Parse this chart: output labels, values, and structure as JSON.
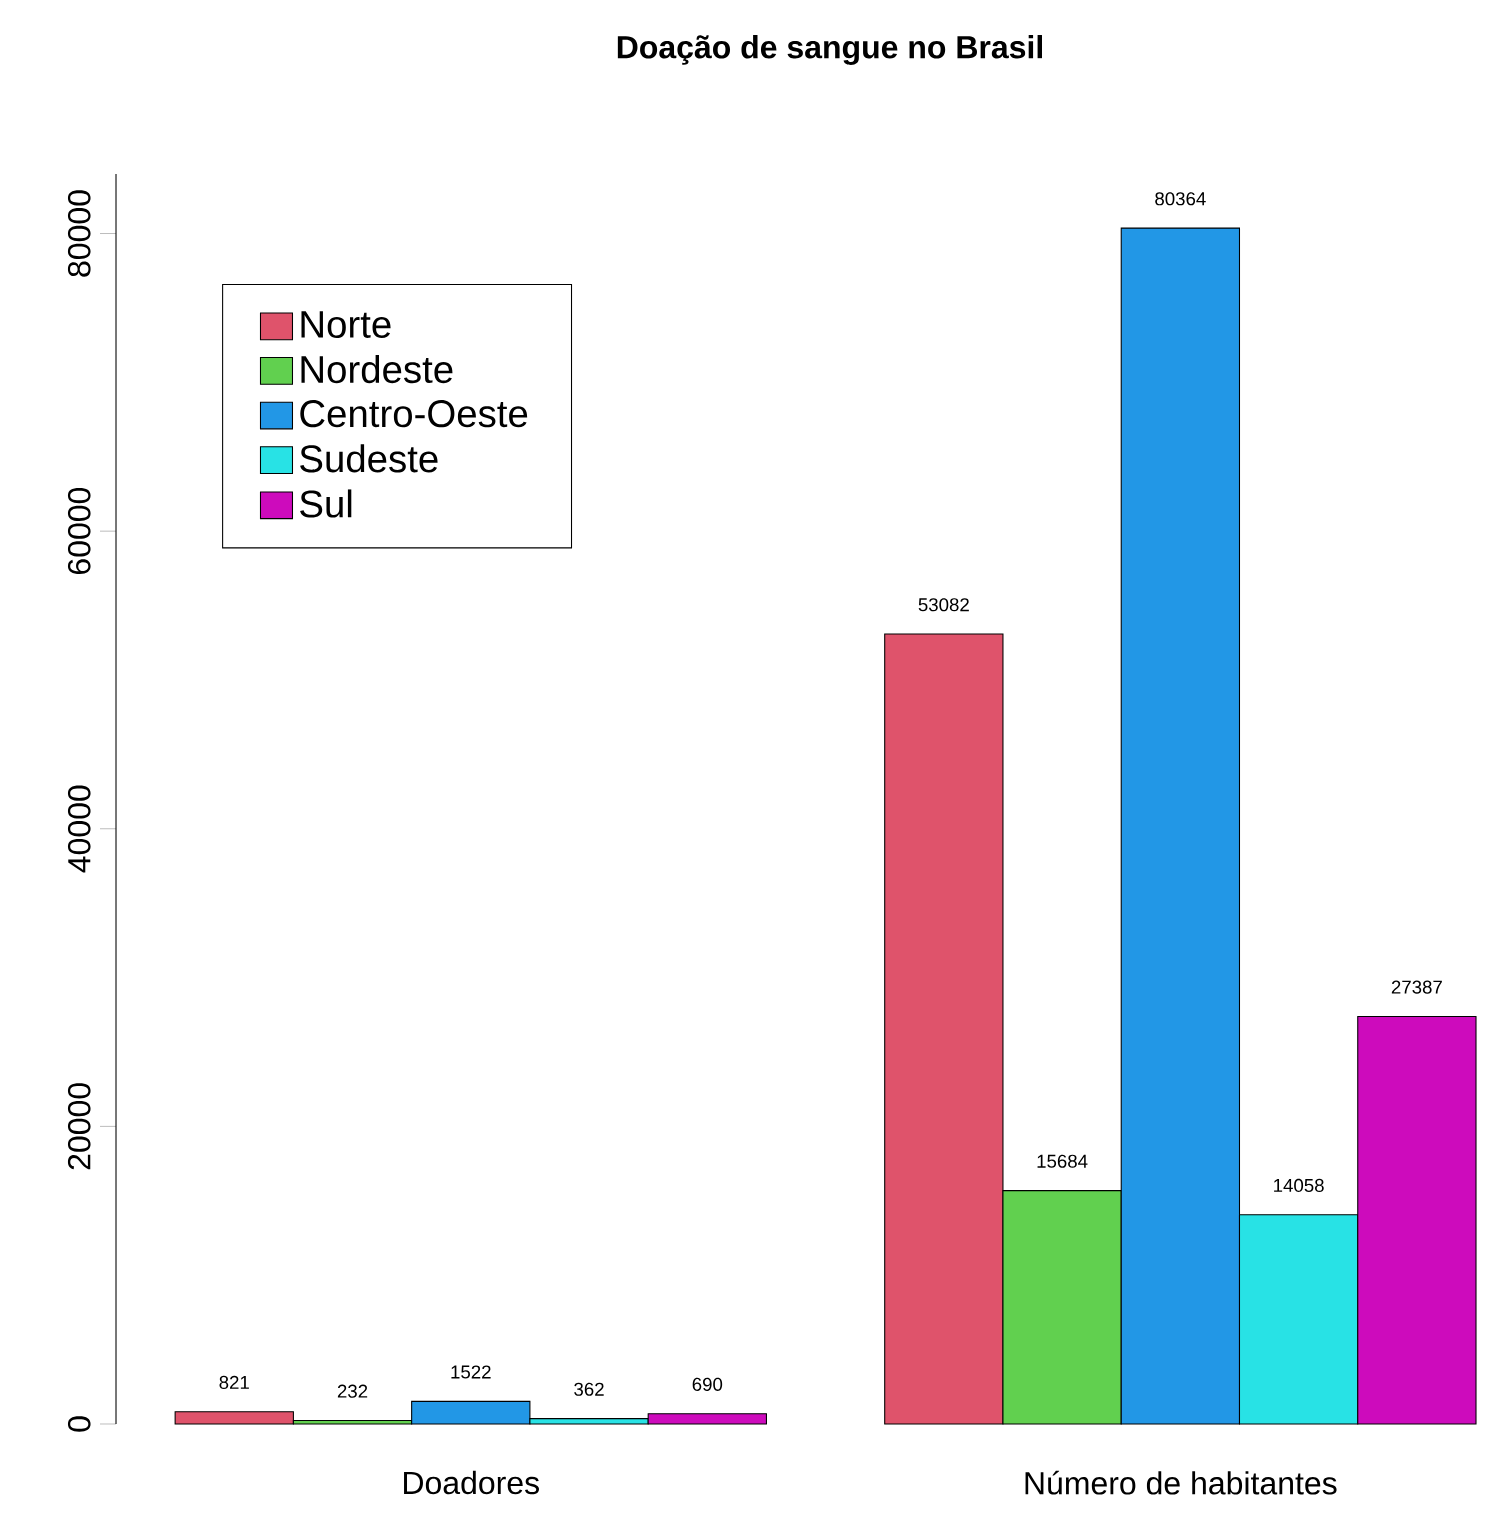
{
  "chart_data": {
    "type": "bar",
    "title": "Doação de sangue no Brasil",
    "categories": [
      "Doadores",
      "Número de habitantes"
    ],
    "series": [
      {
        "name": "Norte",
        "color": "#df536b",
        "values": [
          821,
          53082
        ]
      },
      {
        "name": "Nordeste",
        "color": "#61d04f",
        "values": [
          232,
          15684
        ]
      },
      {
        "name": "Centro-Oeste",
        "color": "#2297e6",
        "values": [
          1522,
          80364
        ]
      },
      {
        "name": "Sudeste",
        "color": "#28e2e5",
        "values": [
          362,
          14058
        ]
      },
      {
        "name": "Sul",
        "color": "#cd0bbc",
        "values": [
          690,
          27387
        ]
      }
    ],
    "ylim": [
      0,
      84000
    ],
    "yticks": [
      0,
      20000,
      40000,
      60000,
      80000
    ],
    "data_labels": true,
    "legend": "top left",
    "grid": false
  }
}
